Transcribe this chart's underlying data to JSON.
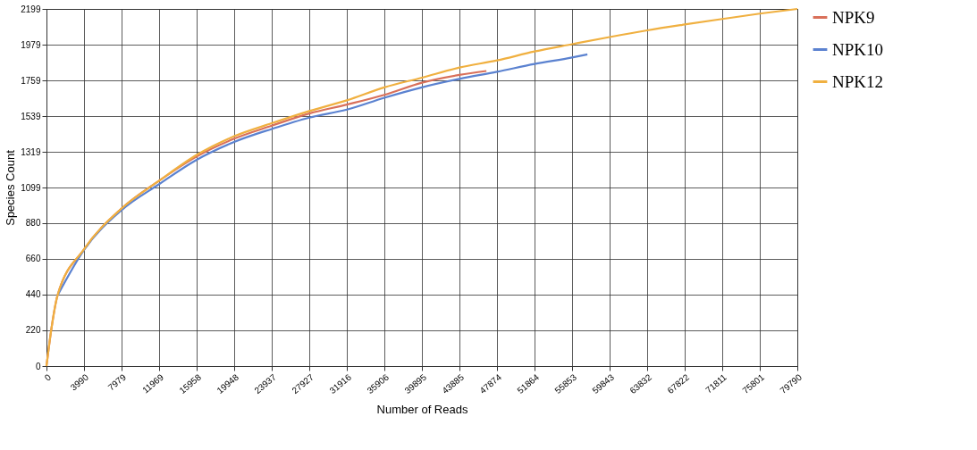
{
  "chart_data": {
    "type": "line",
    "xlabel": "Number of Reads",
    "ylabel": "Species Count",
    "xlim": [
      0,
      79790
    ],
    "ylim": [
      0,
      2199
    ],
    "xticks": [
      0,
      3990,
      7979,
      11969,
      15958,
      19948,
      23937,
      27927,
      31916,
      35906,
      39895,
      43885,
      47874,
      51864,
      55853,
      59843,
      63832,
      67822,
      71811,
      75801,
      79790
    ],
    "yticks": [
      0,
      220,
      440,
      660,
      880,
      1099,
      1319,
      1539,
      1759,
      1979,
      2199
    ],
    "grid": true,
    "legend": "top right",
    "marker": "none",
    "line_style": "solid",
    "series": [
      {
        "name": "NPK9",
        "color": "#d9705a",
        "x": [
          0,
          450,
          1170,
          3990,
          7979,
          11969,
          15958,
          19948,
          23937,
          27927,
          31916,
          35906,
          39895,
          43885,
          46750
        ],
        "values": [
          0,
          200,
          434,
          718,
          970,
          1141,
          1290,
          1400,
          1480,
          1555,
          1610,
          1670,
          1745,
          1793,
          1817
        ]
      },
      {
        "name": "NPK10",
        "color": "#5b82d0",
        "x": [
          1170,
          3990,
          7979,
          11969,
          15958,
          19948,
          23937,
          27927,
          31916,
          35906,
          39895,
          43885,
          47874,
          51864,
          55853,
          57480
        ],
        "values": [
          434,
          715,
          960,
          1120,
          1270,
          1380,
          1460,
          1530,
          1579,
          1652,
          1716,
          1768,
          1812,
          1860,
          1900,
          1919
        ]
      },
      {
        "name": "NPK12",
        "color": "#f0b040",
        "x": [
          0,
          450,
          1170,
          3990,
          7979,
          11969,
          15958,
          19948,
          23937,
          27927,
          31916,
          35906,
          39895,
          43885,
          47874,
          51864,
          55853,
          59843,
          63832,
          67822,
          71811,
          75801,
          79790
        ],
        "values": [
          0,
          200,
          434,
          720,
          970,
          1141,
          1300,
          1415,
          1495,
          1570,
          1636,
          1716,
          1776,
          1838,
          1882,
          1937,
          1982,
          2026,
          2067,
          2103,
          2137,
          2170,
          2199
        ]
      }
    ]
  }
}
